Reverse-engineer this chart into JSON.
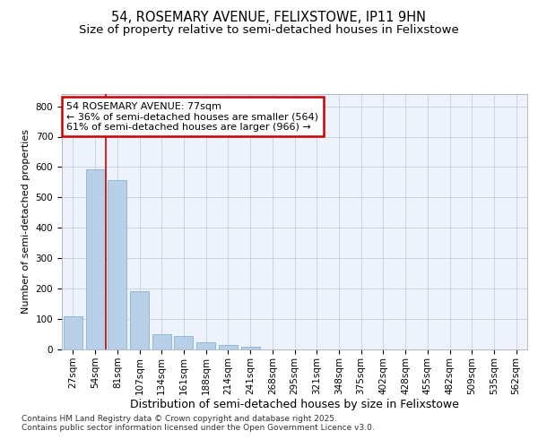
{
  "title_line1": "54, ROSEMARY AVENUE, FELIXSTOWE, IP11 9HN",
  "title_line2": "Size of property relative to semi-detached houses in Felixstowe",
  "xlabel": "Distribution of semi-detached houses by size in Felixstowe",
  "ylabel": "Number of semi-detached properties",
  "categories": [
    "27sqm",
    "54sqm",
    "81sqm",
    "107sqm",
    "134sqm",
    "161sqm",
    "188sqm",
    "214sqm",
    "241sqm",
    "268sqm",
    "295sqm",
    "321sqm",
    "348sqm",
    "375sqm",
    "402sqm",
    "428sqm",
    "455sqm",
    "482sqm",
    "509sqm",
    "535sqm",
    "562sqm"
  ],
  "values": [
    108,
    592,
    556,
    193,
    50,
    43,
    25,
    15,
    8,
    0,
    0,
    0,
    0,
    0,
    0,
    0,
    0,
    0,
    0,
    0,
    0
  ],
  "bar_color": "#b8cfe8",
  "bar_edge_color": "#7aaad0",
  "vline_index": 1.5,
  "vline_color": "#cc0000",
  "annotation_text": "54 ROSEMARY AVENUE: 77sqm\n← 36% of semi-detached houses are smaller (564)\n61% of semi-detached houses are larger (966) →",
  "annotation_box_color": "#cc0000",
  "ylim": [
    0,
    840
  ],
  "yticks": [
    0,
    100,
    200,
    300,
    400,
    500,
    600,
    700,
    800
  ],
  "background_color": "#eef2fb",
  "grid_color": "#c5cde0",
  "footer_text": "Contains HM Land Registry data © Crown copyright and database right 2025.\nContains public sector information licensed under the Open Government Licence v3.0.",
  "title_fontsize": 10.5,
  "subtitle_fontsize": 9.5,
  "ylabel_fontsize": 8,
  "xlabel_fontsize": 9,
  "tick_fontsize": 7.5,
  "annotation_fontsize": 8,
  "footer_fontsize": 6.5
}
